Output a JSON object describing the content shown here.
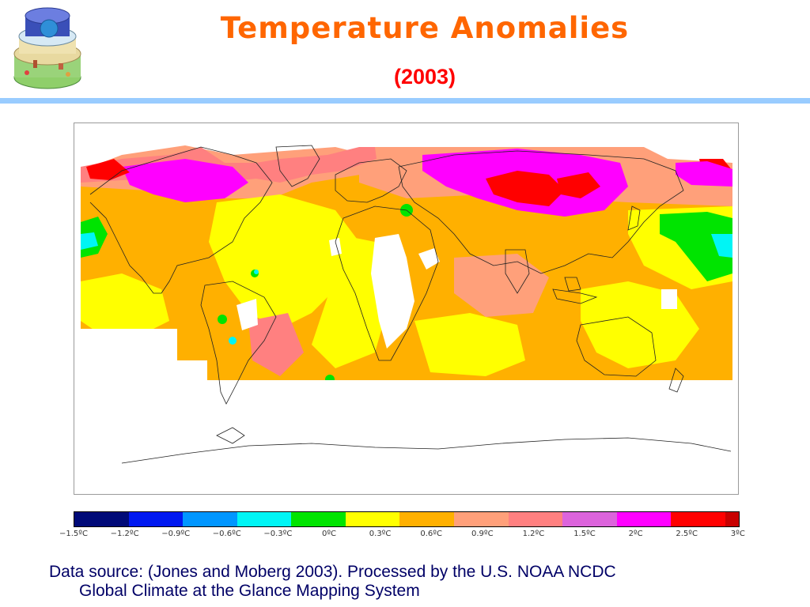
{
  "header": {
    "title": "Temperature Anomalies",
    "subtitle": "(2003)"
  },
  "legend": {
    "colors": [
      "#000a78",
      "#0018f0",
      "#0096ff",
      "#00f5f5",
      "#00e400",
      "#ffff00",
      "#ffb000",
      "#ffa07a",
      "#ff8080",
      "#dc64dc",
      "#ff00ff",
      "#ff0000",
      "#c80000"
    ],
    "ticks": [
      "−1.5ºC",
      "−1.2ºC",
      "−0.9ºC",
      "−0.6ºC",
      "−0.3ºC",
      "0ºC",
      "0.3ºC",
      "0.6ºC",
      "0.9ºC",
      "1.2ºC",
      "1.5ºC",
      "2ºC",
      "2.5ºC",
      "3ºC"
    ]
  },
  "footer": {
    "line1": "Data source: (Jones and Moberg 2003).  Processed by the U.S. NOAA NCDC",
    "line2": "Global Climate at the Glance Mapping System"
  },
  "map": {
    "ocean_color": "#ffffff",
    "coastline_color": "#222222",
    "no_data_color": "#ffffff"
  }
}
